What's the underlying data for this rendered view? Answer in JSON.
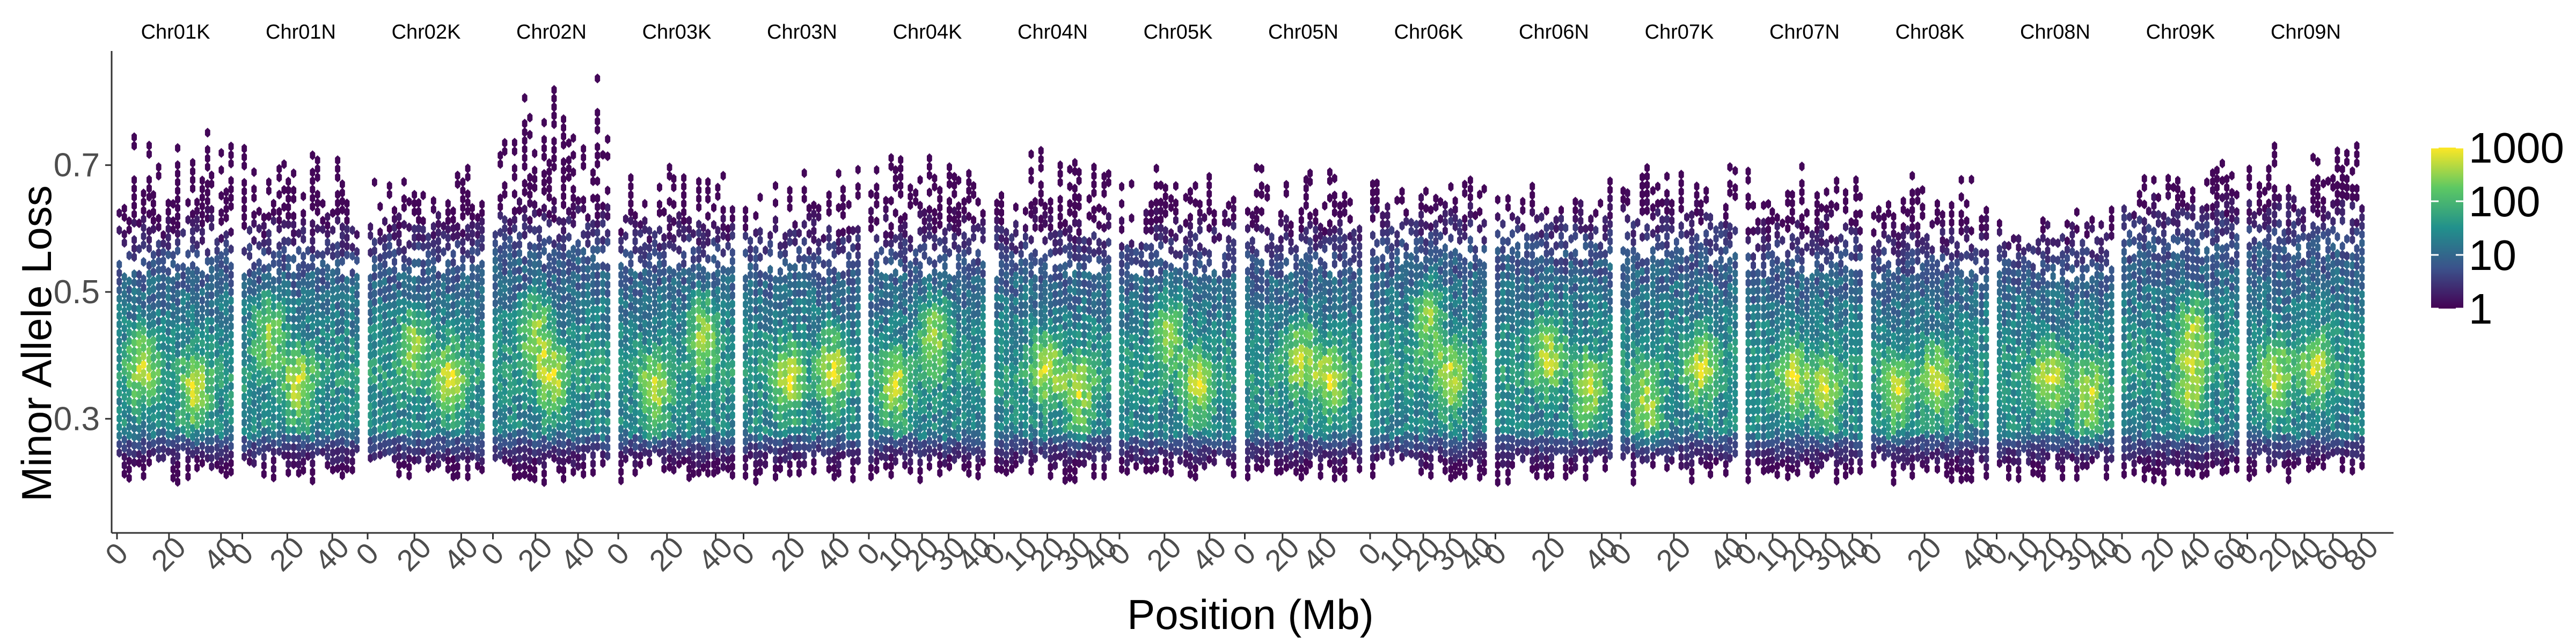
{
  "chart_data": {
    "type": "heatmap",
    "subtype": "hexbin-faceted",
    "title": "",
    "xlabel": "Position (Mb)",
    "ylabel": "Minor Allele Loss",
    "ylim": [
      0.12,
      0.88
    ],
    "yticks": [
      0.3,
      0.5,
      0.7
    ],
    "ytick_labels": [
      "0.3",
      "0.5",
      "0.7"
    ],
    "grid": false,
    "colormap": "viridis",
    "colors": [
      "#440154",
      "#3b528b",
      "#21908c",
      "#5dc863",
      "#fde725"
    ],
    "legend": {
      "placement": "right",
      "scale": "log10",
      "range": [
        1,
        1000
      ],
      "breaks": [
        1,
        10,
        100,
        1000
      ],
      "labels": [
        "1",
        "10",
        "100",
        "1000"
      ]
    },
    "panels": [
      {
        "name": "Chr01K",
        "xmax": 45,
        "xticks": [
          0,
          20,
          40
        ],
        "xtick_labels": [
          "0",
          "20",
          "40"
        ],
        "core": [
          0.27,
          0.53
        ],
        "hi": 0.75,
        "hot": [
          [
            10,
            0.38
          ],
          [
            30,
            0.34
          ]
        ]
      },
      {
        "name": "Chr01N",
        "xmax": 52,
        "xticks": [
          0,
          20,
          40
        ],
        "xtick_labels": [
          "0",
          "20",
          "40"
        ],
        "core": [
          0.27,
          0.53
        ],
        "hi": 0.72,
        "hot": [
          [
            12,
            0.44
          ],
          [
            25,
            0.35
          ]
        ]
      },
      {
        "name": "Chr02K",
        "xmax": 50,
        "xticks": [
          0,
          20,
          40
        ],
        "xtick_labels": [
          "0",
          "20",
          "40"
        ],
        "core": [
          0.27,
          0.53
        ],
        "hi": 0.7,
        "hot": [
          [
            20,
            0.42
          ],
          [
            35,
            0.36
          ]
        ]
      },
      {
        "name": "Chr02N",
        "xmax": 55,
        "xticks": [
          0,
          20,
          40
        ],
        "xtick_labels": [
          "0",
          "20",
          "40"
        ],
        "core": [
          0.27,
          0.55
        ],
        "hi": 0.84,
        "hot": [
          [
            20,
            0.44
          ],
          [
            28,
            0.36
          ]
        ]
      },
      {
        "name": "Chr03K",
        "xmax": 48,
        "xticks": [
          0,
          20,
          40
        ],
        "xtick_labels": [
          "0",
          "20",
          "40"
        ],
        "core": [
          0.27,
          0.53
        ],
        "hi": 0.7,
        "hot": [
          [
            35,
            0.44
          ],
          [
            15,
            0.34
          ]
        ]
      },
      {
        "name": "Chr03N",
        "xmax": 52,
        "xticks": [
          0,
          20,
          40
        ],
        "xtick_labels": [
          "0",
          "20",
          "40"
        ],
        "core": [
          0.27,
          0.53
        ],
        "hi": 0.7,
        "hot": [
          [
            20,
            0.36
          ],
          [
            40,
            0.38
          ]
        ]
      },
      {
        "name": "Chr04K",
        "xmax": 44,
        "xticks": [
          0,
          10,
          20,
          30,
          40
        ],
        "xtick_labels": [
          "0",
          "10",
          "20",
          "30",
          "40"
        ],
        "core": [
          0.27,
          0.53
        ],
        "hi": 0.72,
        "hot": [
          [
            25,
            0.44
          ],
          [
            10,
            0.35
          ]
        ]
      },
      {
        "name": "Chr04N",
        "xmax": 44,
        "xticks": [
          0,
          10,
          20,
          30,
          40
        ],
        "xtick_labels": [
          "0",
          "10",
          "20",
          "30",
          "40"
        ],
        "core": [
          0.27,
          0.53
        ],
        "hi": 0.72,
        "hot": [
          [
            20,
            0.38
          ],
          [
            32,
            0.34
          ]
        ]
      },
      {
        "name": "Chr05K",
        "xmax": 52,
        "xticks": [
          0,
          20,
          40
        ],
        "xtick_labels": [
          "0",
          "20",
          "40"
        ],
        "core": [
          0.27,
          0.53
        ],
        "hi": 0.7,
        "hot": [
          [
            22,
            0.44
          ],
          [
            35,
            0.35
          ]
        ]
      },
      {
        "name": "Chr05N",
        "xmax": 62,
        "xticks": [
          0,
          20,
          40
        ],
        "xtick_labels": [
          "0",
          "20",
          "40"
        ],
        "core": [
          0.27,
          0.53
        ],
        "hi": 0.7,
        "hot": [
          [
            30,
            0.4
          ],
          [
            45,
            0.36
          ]
        ]
      },
      {
        "name": "Chr06K",
        "xmax": 44,
        "xticks": [
          0,
          10,
          20,
          30,
          40
        ],
        "xtick_labels": [
          "0",
          "10",
          "20",
          "30",
          "40"
        ],
        "core": [
          0.27,
          0.55
        ],
        "hi": 0.68,
        "hot": [
          [
            22,
            0.46
          ],
          [
            30,
            0.36
          ]
        ]
      },
      {
        "name": "Chr06N",
        "xmax": 44,
        "xticks": [
          0,
          20,
          40
        ],
        "xtick_labels": [
          "0",
          "20",
          "40"
        ],
        "core": [
          0.27,
          0.55
        ],
        "hi": 0.68,
        "hot": [
          [
            20,
            0.4
          ],
          [
            35,
            0.34
          ]
        ]
      },
      {
        "name": "Chr07K",
        "xmax": 44,
        "xticks": [
          0,
          20,
          40
        ],
        "xtick_labels": [
          "0",
          "20",
          "40"
        ],
        "core": [
          0.27,
          0.55
        ],
        "hi": 0.72,
        "hot": [
          [
            10,
            0.32
          ],
          [
            30,
            0.38
          ]
        ]
      },
      {
        "name": "Chr07N",
        "xmax": 44,
        "xticks": [
          0,
          10,
          20,
          30,
          40
        ],
        "xtick_labels": [
          "0",
          "10",
          "20",
          "30",
          "40"
        ],
        "core": [
          0.27,
          0.53
        ],
        "hi": 0.7,
        "hot": [
          [
            18,
            0.36
          ],
          [
            30,
            0.34
          ]
        ]
      },
      {
        "name": "Chr08K",
        "xmax": 44,
        "xticks": [
          0,
          20,
          40
        ],
        "xtick_labels": [
          "0",
          "20",
          "40"
        ],
        "core": [
          0.27,
          0.52
        ],
        "hi": 0.68,
        "hot": [
          [
            25,
            0.36
          ],
          [
            10,
            0.34
          ]
        ]
      },
      {
        "name": "Chr08N",
        "xmax": 44,
        "xticks": [
          0,
          10,
          20,
          30,
          40
        ],
        "xtick_labels": [
          "0",
          "10",
          "20",
          "30",
          "40"
        ],
        "core": [
          0.27,
          0.52
        ],
        "hi": 0.62,
        "hot": [
          [
            20,
            0.36
          ],
          [
            35,
            0.33
          ]
        ]
      },
      {
        "name": "Chr09K",
        "xmax": 65,
        "xticks": [
          0,
          20,
          40,
          60
        ],
        "xtick_labels": [
          "0",
          "20",
          "40",
          "60"
        ],
        "core": [
          0.27,
          0.56
        ],
        "hi": 0.7,
        "hot": [
          [
            40,
            0.44
          ],
          [
            38,
            0.34
          ]
        ]
      },
      {
        "name": "Chr09N",
        "xmax": 82,
        "xticks": [
          0,
          20,
          40,
          60,
          80
        ],
        "xtick_labels": [
          "0",
          "20",
          "40",
          "60",
          "80"
        ],
        "core": [
          0.27,
          0.56
        ],
        "hi": 0.74,
        "hot": [
          [
            48,
            0.38
          ],
          [
            20,
            0.36
          ]
        ]
      }
    ]
  }
}
